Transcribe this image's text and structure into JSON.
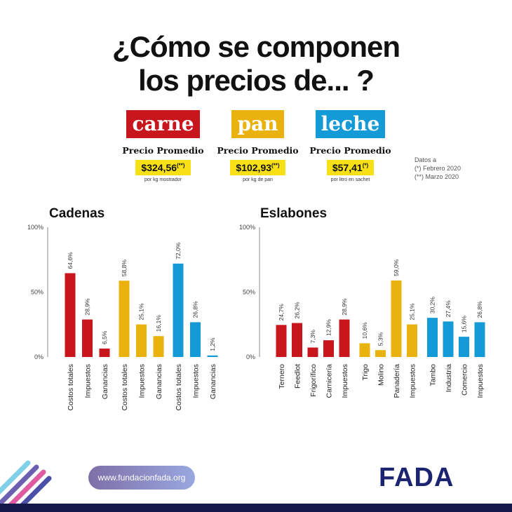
{
  "header": {
    "title_line1": "¿Cómo se componen",
    "title_line2": "los precios de... ?"
  },
  "products": [
    {
      "name": "carne",
      "color": "#c8161d",
      "label": "Precio Promedio",
      "price": "$324,56",
      "mark": "(**)",
      "unit": "por kg mostrador"
    },
    {
      "name": "pan",
      "color": "#e9b20e",
      "label": "Precio Promedio",
      "price": "$102,93",
      "mark": "(**)",
      "unit": "por kg de pan"
    },
    {
      "name": "leche",
      "color": "#159ad8",
      "label": "Precio Promedio",
      "price": "$57,41",
      "mark": "(*)",
      "unit": "por litro en sachet"
    }
  ],
  "notes": {
    "line1": "Datos a",
    "line2": "(*) Febrero 2020",
    "line3": "(**) Marzo 2020"
  },
  "chart_data": [
    {
      "type": "bar",
      "title": "Cadenas",
      "ylim": [
        0,
        100
      ],
      "yticks": [
        "0%",
        "50%",
        "100%"
      ],
      "groups": [
        {
          "product": "carne",
          "color": "#c8161d",
          "categories": [
            "Costos totales",
            "Impuestos",
            "Ganancias"
          ],
          "values": [
            64.6,
            28.9,
            6.5
          ],
          "labels": [
            "64,6%",
            "28,9%",
            "6,5%"
          ]
        },
        {
          "product": "pan",
          "color": "#e9b20e",
          "categories": [
            "Costos totales",
            "Impuestos",
            "Ganancias"
          ],
          "values": [
            58.8,
            25.1,
            16.1
          ],
          "labels": [
            "58,8%",
            "25,1%",
            "16,1%"
          ]
        },
        {
          "product": "leche",
          "color": "#159ad8",
          "categories": [
            "Costos totales",
            "Impuestos",
            "Ganancias"
          ],
          "values": [
            72.0,
            26.8,
            1.2
          ],
          "labels": [
            "72,0%",
            "26,8%",
            "1,2%"
          ]
        }
      ]
    },
    {
      "type": "bar",
      "title": "Eslabones",
      "ylim": [
        0,
        100
      ],
      "yticks": [
        "0%",
        "50%",
        "100%"
      ],
      "groups": [
        {
          "product": "carne",
          "color": "#c8161d",
          "categories": [
            "Ternero",
            "Feedlot",
            "Frigorífico",
            "Carnicería",
            "Impuestos"
          ],
          "values": [
            24.7,
            26.2,
            7.3,
            12.9,
            28.9
          ],
          "labels": [
            "24,7%",
            "26,2%",
            "7,3%",
            "12,9%",
            "28,9%"
          ]
        },
        {
          "product": "pan",
          "color": "#e9b20e",
          "categories": [
            "Trigo",
            "Molino",
            "Panadería",
            "Impuestos"
          ],
          "values": [
            10.6,
            5.3,
            59.0,
            25.1
          ],
          "labels": [
            "10,6%",
            "5,3%",
            "59,0%",
            "25,1%"
          ]
        },
        {
          "product": "leche",
          "color": "#159ad8",
          "categories": [
            "Tambo",
            "Industria",
            "Comercio",
            "Impuestos"
          ],
          "values": [
            30.2,
            27.4,
            15.6,
            26.8
          ],
          "labels": [
            "30,2%",
            "27,4%",
            "15,6%",
            "26,8%"
          ]
        }
      ]
    }
  ],
  "footer": {
    "url": "www.fundacionfada.org",
    "logo": "FADA"
  }
}
